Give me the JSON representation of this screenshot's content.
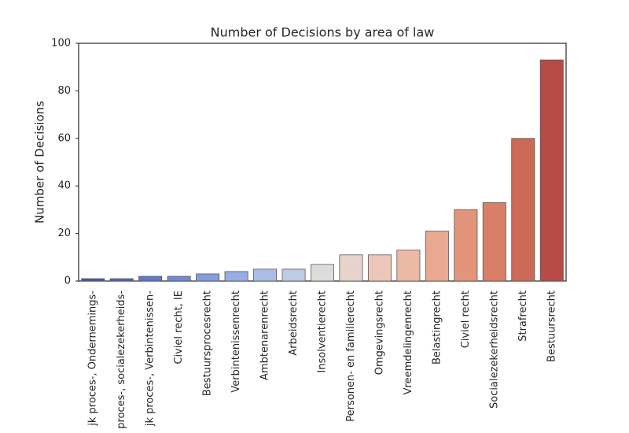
{
  "chart_data": {
    "type": "bar",
    "title": "Number of Decisions by area of law",
    "ylabel": "Number of Decisions",
    "categories": [
      "jk proces-, Ondernemings-",
      "proces-, socialezekerheids-",
      "jk proces-, Verbintenissen-",
      "Civiel recht, IE",
      "Bestuursprocesrecht",
      "Verbintenissenrecht",
      "Ambtenarenrecht",
      "Arbeidsrecht",
      "Insolventierecht",
      "Personen- en familierecht",
      "Omgevingsrecht",
      "Vreemdelingenrecht",
      "Belastingrecht",
      "Civiel recht",
      "Socialezekerheidsrecht",
      "Strafrecht",
      "Bestuursrecht"
    ],
    "values": [
      1,
      1,
      2,
      2,
      3,
      4,
      5,
      5,
      7,
      11,
      11,
      13,
      21,
      30,
      33,
      60,
      93
    ],
    "colors": [
      "#4657b5",
      "#5266c2",
      "#6078cc",
      "#7189d6",
      "#849cde",
      "#97ade3",
      "#abbde6",
      "#bfcae4",
      "#dcdcdc",
      "#e6d3cb",
      "#ecc7b9",
      "#ecb9a6",
      "#e9a890",
      "#e3957b",
      "#d87f67",
      "#cb6a56",
      "#b84b48"
    ],
    "ylim": [
      0,
      100
    ],
    "yticks": [
      0,
      20,
      40,
      60,
      80,
      100
    ],
    "grid": false
  }
}
